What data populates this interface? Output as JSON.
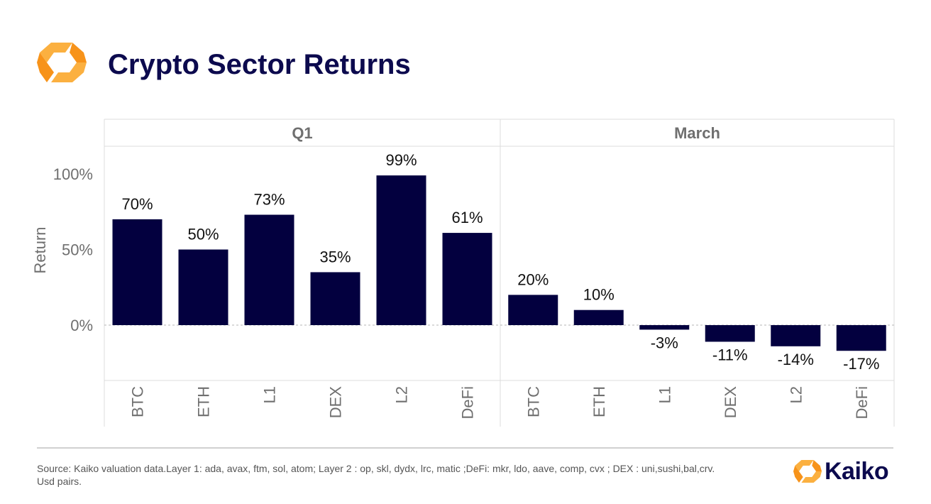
{
  "header": {
    "title": "Crypto Sector Returns"
  },
  "chart_data": {
    "type": "bar",
    "ylabel": "Return",
    "ylim": [
      -0.37,
      1.2
    ],
    "yticks": [
      0,
      0.5,
      1.0
    ],
    "ytick_labels": [
      "0%",
      "50%",
      "100%"
    ],
    "grid": false,
    "zero_line": "dashed",
    "bar_color": "#03003f",
    "panels": [
      {
        "label": "Q1",
        "categories": [
          "BTC",
          "ETH",
          "L1",
          "DEX",
          "L2",
          "DeFi"
        ],
        "values": [
          0.7,
          0.5,
          0.73,
          0.35,
          0.99,
          0.61
        ],
        "data_labels": [
          "70%",
          "50%",
          "73%",
          "35%",
          "99%",
          "61%"
        ]
      },
      {
        "label": "March",
        "categories": [
          "BTC",
          "ETH",
          "L1",
          "DEX",
          "L2",
          "DeFi"
        ],
        "values": [
          0.2,
          0.1,
          -0.03,
          -0.11,
          -0.14,
          -0.17
        ],
        "data_labels": [
          "20%",
          "10%",
          "-3%",
          "-11%",
          "-14%",
          "-17%"
        ]
      }
    ]
  },
  "footer": {
    "source": "Source: Kaiko valuation data.Layer 1: ada, avax, ftm, sol, atom; Layer 2 : op, skl, dydx, lrc, matic ;DeFi: mkr, ldo, aave, comp, cvx ; DEX : uni,sushi,bal,crv. Usd pairs.",
    "brand_name": "Kaiko"
  },
  "colors": {
    "title": "#0c0a4e",
    "bar": "#03003f",
    "logo_orange": "#f7931a",
    "logo_light": "#fbb040"
  },
  "icons": {
    "logo": "kaiko-logo-icon"
  }
}
